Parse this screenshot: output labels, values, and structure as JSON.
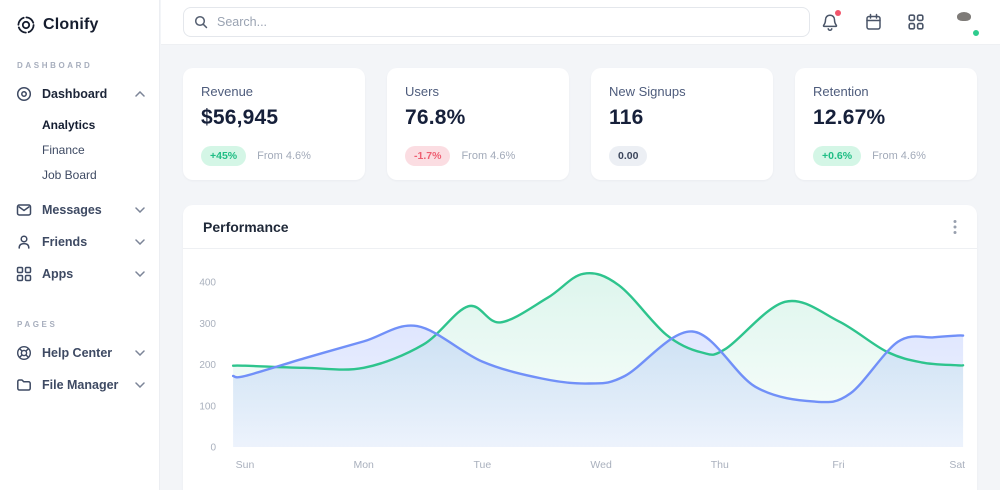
{
  "sidebar": {
    "logo_text": "Clonify",
    "section_dashboard_label": "DASHBOARD",
    "section_pages_label": "PAGES",
    "items": {
      "dashboard": "Dashboard",
      "analytics": "Analytics",
      "finance": "Finance",
      "job_board": "Job Board",
      "messages": "Messages",
      "friends": "Friends",
      "apps": "Apps",
      "help_center": "Help Center",
      "file_manager": "File Manager"
    }
  },
  "topbar": {
    "search_placeholder": "Search..."
  },
  "stat_cards": [
    {
      "title": "Revenue",
      "value": "$56,945",
      "badge": "+45%",
      "badge_type": "positive",
      "note": "From 4.6%"
    },
    {
      "title": "Users",
      "value": "76.8%",
      "badge": "-1.7%",
      "badge_type": "negative",
      "note": "From 4.6%"
    },
    {
      "title": "New Signups",
      "value": "116",
      "badge": "0.00",
      "badge_type": "neutral",
      "note": ""
    },
    {
      "title": "Retention",
      "value": "12.67%",
      "badge": "+0.6%",
      "badge_type": "positive",
      "note": "From 4.6%"
    }
  ],
  "chart_data": {
    "type": "area",
    "title": "Performance",
    "x_labels": [
      "Sun",
      "Mon",
      "Tue",
      "Wed",
      "Thu",
      "Fri",
      "Sat"
    ],
    "y_ticks": [
      0,
      100,
      200,
      300,
      400
    ],
    "ylim": [
      0,
      430
    ],
    "grid": false,
    "legend": "none",
    "series": [
      {
        "name": "green-series",
        "color": "#2ec48d",
        "fill_top": "rgba(46,196,141,0.16)",
        "fill_bottom": "rgba(46,196,141,0.02)",
        "points": [
          [
            0,
            197
          ],
          [
            0.5,
            192
          ],
          [
            1,
            192
          ],
          [
            1.5,
            248
          ],
          [
            1.88,
            341
          ],
          [
            2.15,
            302
          ],
          [
            2.55,
            362
          ],
          [
            2.85,
            420
          ],
          [
            3.15,
            392
          ],
          [
            3.55,
            272
          ],
          [
            3.85,
            229
          ],
          [
            4.05,
            238
          ],
          [
            4.55,
            352
          ],
          [
            5,
            305
          ],
          [
            5.4,
            232
          ],
          [
            5.7,
            205
          ],
          [
            6,
            198
          ]
        ]
      },
      {
        "name": "blue-series",
        "color": "#7190f8",
        "fill_top": "rgba(113,144,249,0.28)",
        "fill_bottom": "rgba(113,144,249,0.10)",
        "points": [
          [
            0,
            172
          ],
          [
            0.5,
            215
          ],
          [
            1,
            256
          ],
          [
            1.45,
            293
          ],
          [
            2,
            207
          ],
          [
            2.5,
            166
          ],
          [
            2.9,
            154
          ],
          [
            3.2,
            172
          ],
          [
            3.77,
            280
          ],
          [
            4.3,
            146
          ],
          [
            4.8,
            110
          ],
          [
            5.1,
            130
          ],
          [
            5.5,
            255
          ],
          [
            5.8,
            266
          ],
          [
            6,
            270
          ]
        ]
      }
    ]
  }
}
